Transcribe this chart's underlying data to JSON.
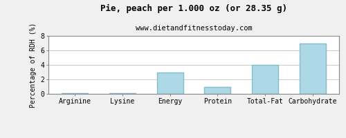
{
  "title": "Pie, peach per 1.000 oz (or 28.35 g)",
  "subtitle": "www.dietandfitnesstoday.com",
  "categories": [
    "Arginine",
    "Lysine",
    "Energy",
    "Protein",
    "Total-Fat",
    "Carbohydrate"
  ],
  "values": [
    0.05,
    0.07,
    3.0,
    1.0,
    4.0,
    7.0
  ],
  "bar_color": "#add8e6",
  "ylabel": "Percentage of RDH (%)",
  "ylim": [
    0,
    8
  ],
  "yticks": [
    0,
    2,
    4,
    6,
    8
  ],
  "background_color": "#f0f0f0",
  "plot_bg_color": "#ffffff",
  "title_fontsize": 9,
  "subtitle_fontsize": 7.5,
  "axis_label_fontsize": 7,
  "tick_fontsize": 7,
  "border_color": "#888888",
  "grid_color": "#cccccc"
}
